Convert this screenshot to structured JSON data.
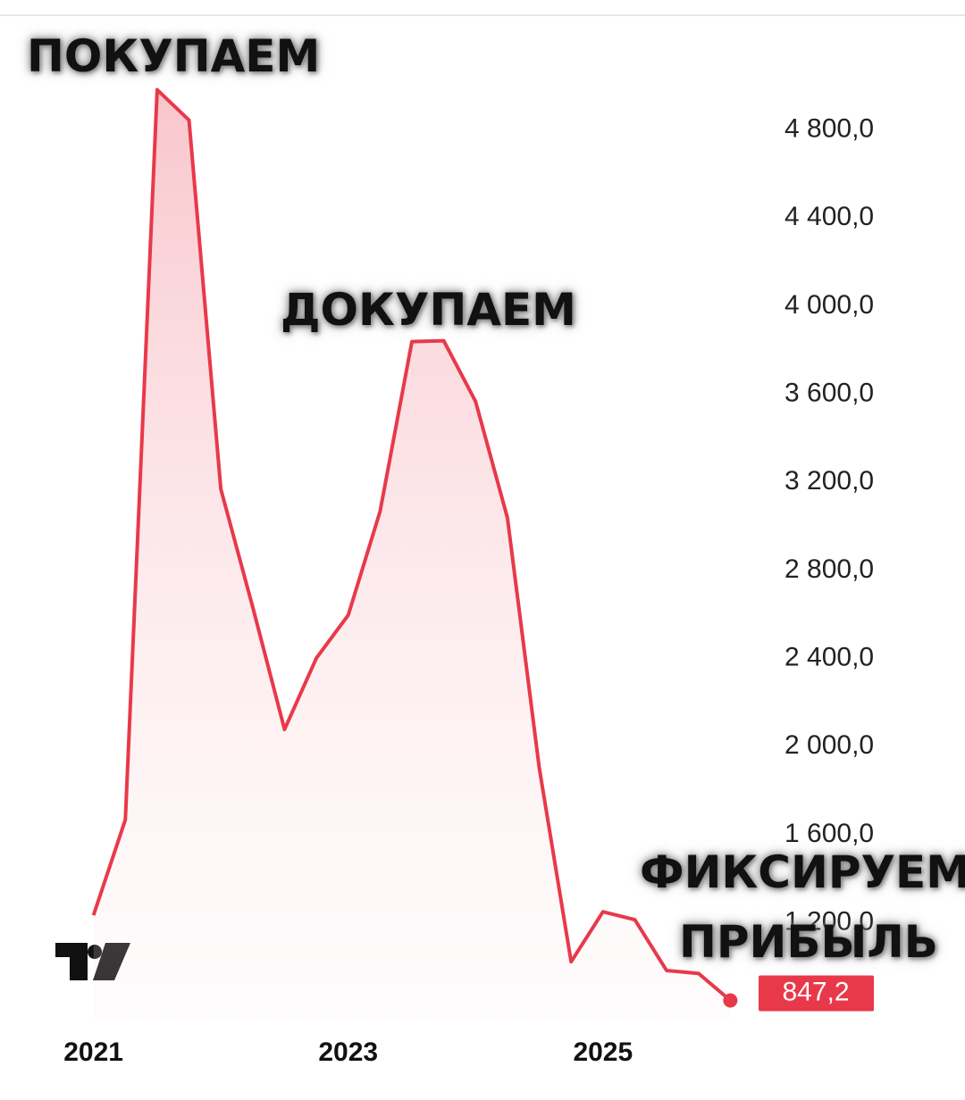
{
  "chart_data": {
    "type": "area",
    "x": [
      2021,
      2021.25,
      2021.5,
      2021.75,
      2022,
      2022.25,
      2022.5,
      2022.75,
      2023,
      2023.25,
      2023.5,
      2023.75,
      2024,
      2024.25,
      2024.5,
      2024.75,
      2025,
      2025.25,
      2025.5,
      2025.75,
      2026
    ],
    "values": [
      1234,
      1668,
      4983,
      4845,
      3169,
      2634,
      2078,
      2402,
      2597,
      3068,
      3839,
      3843,
      3567,
      3039,
      1903,
      1023,
      1250,
      1214,
      983,
      970,
      847.2
    ],
    "value_labels": [
      null,
      null,
      null,
      null,
      null,
      null,
      null,
      null,
      null,
      null,
      null,
      null,
      null,
      null,
      null,
      null,
      null,
      null,
      null,
      null,
      "847,2"
    ],
    "color": "#e8394a",
    "xlim": [
      2020.75,
      2026.25
    ],
    "xticks": [
      2021,
      2023,
      2025
    ],
    "ylim": [
      760,
      5200
    ],
    "yticks": [
      {
        "value": 1200,
        "label": "1 200,0"
      },
      {
        "value": 1600,
        "label": "1 600,0"
      },
      {
        "value": 2000,
        "label": "2 000,0"
      },
      {
        "value": 2400,
        "label": "2 400,0"
      },
      {
        "value": 2800,
        "label": "2 800,0"
      },
      {
        "value": 3200,
        "label": "3 200,0"
      },
      {
        "value": 3600,
        "label": "3 600,0"
      },
      {
        "value": 4000,
        "label": "4 000,0"
      },
      {
        "value": 4400,
        "label": "4 400,0"
      },
      {
        "value": 4800,
        "label": "4 800,0"
      }
    ],
    "annotations": [
      "ПОКУПАЕМ",
      "ДОКУПАЕМ",
      "ФИКСИРУЕМ",
      "ПРИБЫЛЬ"
    ]
  }
}
